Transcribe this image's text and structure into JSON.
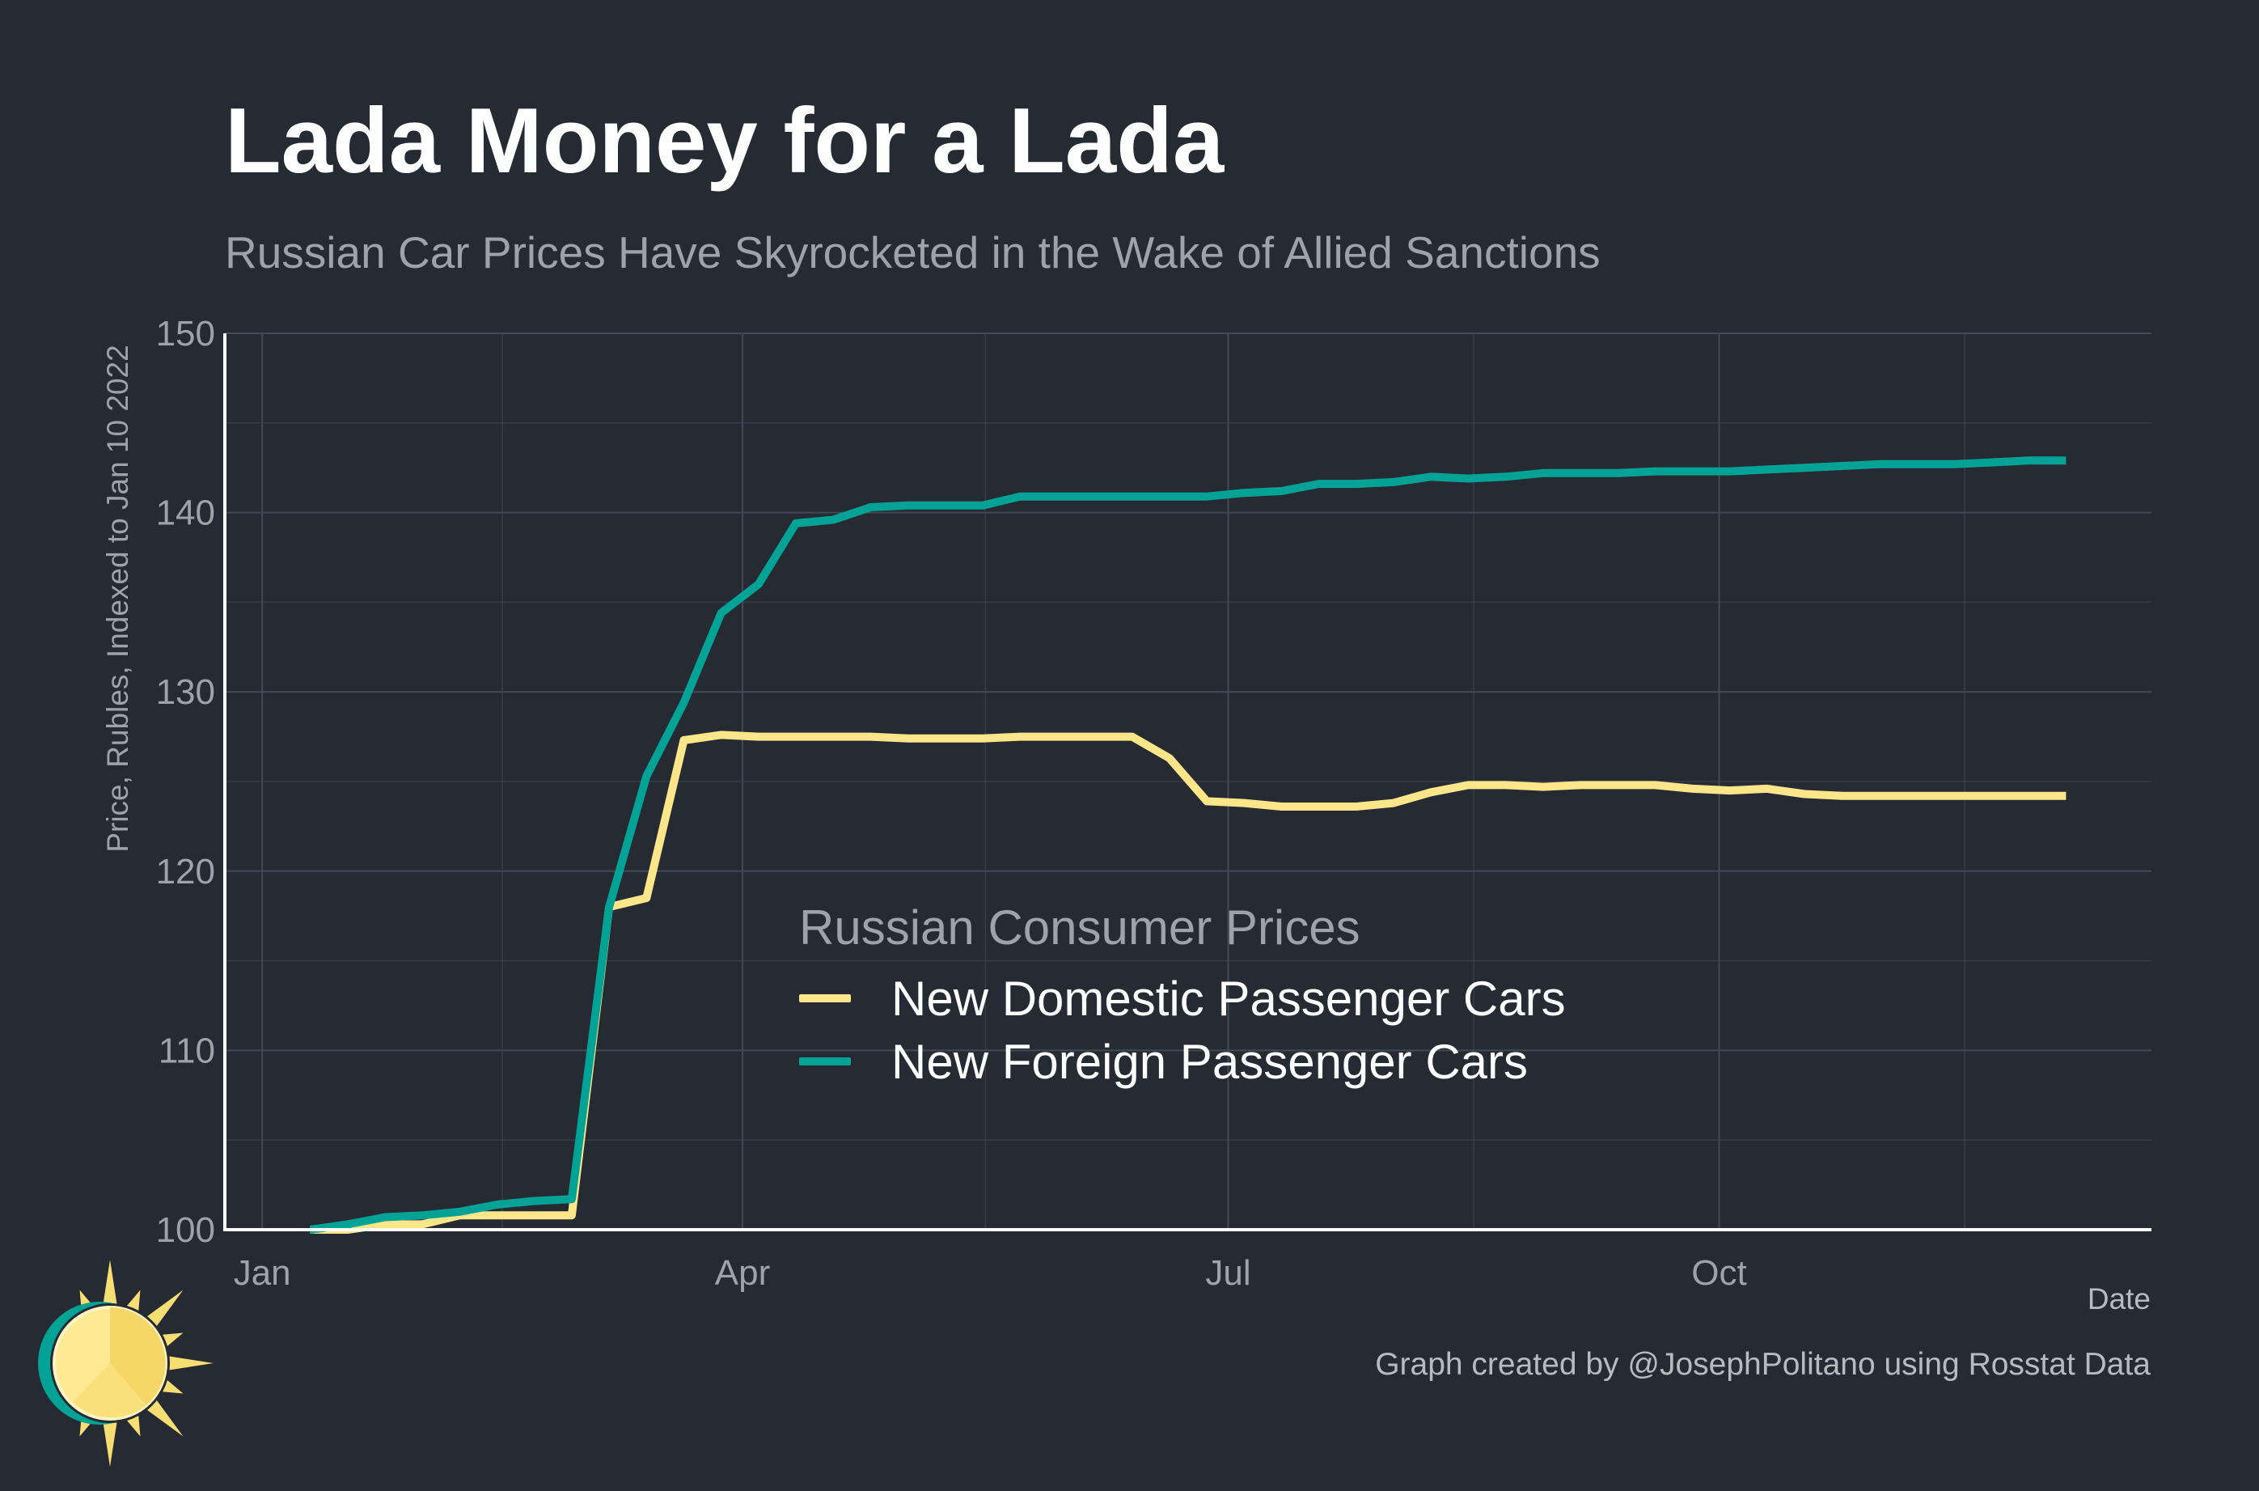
{
  "title": "Lada Money for a Lada",
  "subtitle": "Russian Car Prices Have Skyrocketed in the Wake of Allied Sanctions",
  "caption": "Graph created by @JosephPolitano using Rosstat Data",
  "colors": {
    "background": "#252a33",
    "domestic": "#fde68a",
    "foreign": "#00a396",
    "grid": "#444a55",
    "axis": "#ffffff",
    "logo_sun": "#f7de72",
    "logo_ring": "#00a396"
  },
  "chart_data": {
    "type": "line",
    "title": "Lada Money for a Lada",
    "subtitle": "Russian Car Prices Have Skyrocketed in the Wake of Allied Sanctions",
    "xlabel": "Date",
    "ylabel": "Price, Rubles, Indexed to Jan 10 2022",
    "x_ticks": [
      {
        "label": "Jan",
        "date": "2022-01-01"
      },
      {
        "label": "Apr",
        "date": "2022-04-01"
      },
      {
        "label": "Jul",
        "date": "2022-07-01"
      },
      {
        "label": "Oct",
        "date": "2022-10-01"
      }
    ],
    "xlim": [
      "2021-12-25",
      "2022-12-21"
    ],
    "ylim": [
      100,
      150
    ],
    "y_ticks": [
      100,
      110,
      120,
      130,
      140,
      150
    ],
    "grid": true,
    "legend": {
      "title": "Russian Consumer Prices",
      "position": "center"
    },
    "x": [
      "2022-01-10",
      "2022-01-17",
      "2022-01-24",
      "2022-01-31",
      "2022-02-07",
      "2022-02-14",
      "2022-02-21",
      "2022-02-28",
      "2022-03-07",
      "2022-03-14",
      "2022-03-21",
      "2022-03-28",
      "2022-04-04",
      "2022-04-11",
      "2022-04-18",
      "2022-04-25",
      "2022-05-02",
      "2022-05-09",
      "2022-05-16",
      "2022-05-23",
      "2022-05-30",
      "2022-06-06",
      "2022-06-13",
      "2022-06-20",
      "2022-06-27",
      "2022-07-04",
      "2022-07-11",
      "2022-07-18",
      "2022-07-25",
      "2022-08-01",
      "2022-08-08",
      "2022-08-15",
      "2022-08-22",
      "2022-08-29",
      "2022-09-05",
      "2022-09-12",
      "2022-09-19",
      "2022-09-26",
      "2022-10-03",
      "2022-10-10",
      "2022-10-17",
      "2022-10-24",
      "2022-10-31",
      "2022-11-07",
      "2022-11-14",
      "2022-11-21",
      "2022-11-28",
      "2022-12-05"
    ],
    "series": [
      {
        "name": "New Domestic Passenger Cars",
        "color": "#fde68a",
        "values": [
          100.0,
          100.0,
          100.3,
          100.3,
          100.8,
          100.8,
          100.8,
          100.8,
          118.0,
          118.5,
          127.3,
          127.6,
          127.5,
          127.5,
          127.5,
          127.5,
          127.4,
          127.4,
          127.4,
          127.5,
          127.5,
          127.5,
          127.5,
          126.3,
          123.9,
          123.8,
          123.6,
          123.6,
          123.6,
          123.8,
          124.4,
          124.8,
          124.8,
          124.7,
          124.8,
          124.8,
          124.8,
          124.6,
          124.5,
          124.6,
          124.3,
          124.2,
          124.2,
          124.2,
          124.2,
          124.2,
          124.2,
          124.2
        ]
      },
      {
        "name": "New Foreign Passenger Cars",
        "color": "#00a396",
        "values": [
          100.0,
          100.3,
          100.7,
          100.8,
          101.0,
          101.4,
          101.6,
          101.7,
          118.0,
          125.3,
          129.4,
          134.4,
          136.0,
          139.4,
          139.6,
          140.3,
          140.4,
          140.4,
          140.4,
          140.9,
          140.9,
          140.9,
          140.9,
          140.9,
          140.9,
          141.1,
          141.2,
          141.6,
          141.6,
          141.7,
          142.0,
          141.9,
          142.0,
          142.2,
          142.2,
          142.2,
          142.3,
          142.3,
          142.3,
          142.4,
          142.5,
          142.6,
          142.7,
          142.7,
          142.7,
          142.8,
          142.9,
          142.9
        ]
      }
    ]
  }
}
